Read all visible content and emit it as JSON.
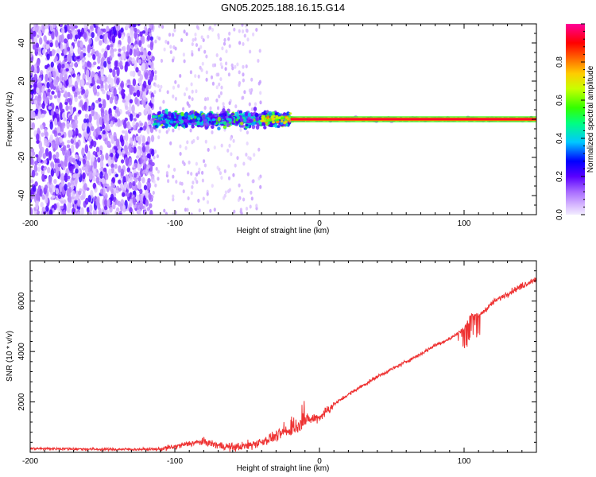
{
  "title": "GN05.2025.188.16.15.G14",
  "colors": {
    "snr_line": "#ee3333",
    "colormap": [
      "#f2ecff",
      "#d7b8ff",
      "#a86bff",
      "#7a1cff",
      "#3a00ff",
      "#0000ff",
      "#00c8ff",
      "#00ff80",
      "#33ff00",
      "#c8ff00",
      "#ffcc00",
      "#ff6600",
      "#ff0000",
      "#ff0099"
    ]
  },
  "chart_data": [
    {
      "type": "heatmap",
      "title": "GN05.2025.188.16.15.G14",
      "xlabel": "Height of straight line (km)",
      "ylabel": "Frequency (Hz)",
      "xlim": [
        -200,
        150
      ],
      "ylim": [
        -50,
        50
      ],
      "xticks": [
        -200,
        -100,
        0,
        100
      ],
      "yticks": [
        -40,
        -20,
        0,
        20,
        40
      ],
      "colorbar": {
        "label": "Normalized spectral amplitude",
        "range": [
          0,
          1
        ],
        "ticks": [
          "0.0",
          "0.2",
          "0.4",
          "0.6",
          "0.8"
        ]
      },
      "bands": [
        {
          "x_range": [
            -200,
            -115
          ],
          "freq_spread": 50,
          "mean_amplitude": 0.15
        },
        {
          "x_range": [
            -115,
            -20
          ],
          "freq_spread": 8,
          "mean_amplitude": 0.3
        },
        {
          "x_range": [
            -20,
            150
          ],
          "freq_spread": 1,
          "mean_amplitude": 0.95
        }
      ],
      "grid": false
    },
    {
      "type": "line",
      "xlabel": "Height of straight line (km)",
      "ylabel": "SNR (10 * v/v)",
      "xlim": [
        -200,
        150
      ],
      "ylim": [
        0,
        7600
      ],
      "xticks": [
        -200,
        -100,
        0,
        100
      ],
      "yticks": [
        2000,
        4000,
        6000
      ],
      "x": [
        -200,
        -175,
        -150,
        -125,
        -110,
        -100,
        -90,
        -80,
        -70,
        -60,
        -50,
        -40,
        -30,
        -20,
        -15,
        -10,
        0,
        5,
        10,
        20,
        30,
        40,
        50,
        60,
        70,
        80,
        90,
        100,
        105,
        110,
        120,
        130,
        140,
        150
      ],
      "y": [
        150,
        140,
        120,
        120,
        130,
        220,
        350,
        420,
        280,
        200,
        260,
        420,
        650,
        850,
        1000,
        1250,
        1400,
        1650,
        1900,
        2300,
        2650,
        3000,
        3300,
        3600,
        3900,
        4250,
        4500,
        4900,
        5500,
        5400,
        5950,
        6300,
        6600,
        6900
      ],
      "grid": false
    }
  ]
}
